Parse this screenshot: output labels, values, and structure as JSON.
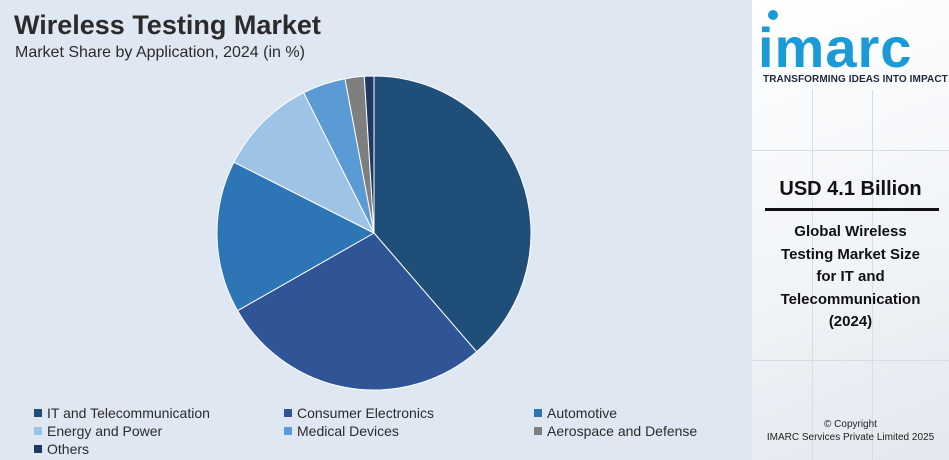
{
  "chart_data": {
    "type": "pie",
    "title": "Wireless Testing Market",
    "subtitle": "Market Share by Application, 2024 (in %)",
    "categories": [
      "IT and Telecommunication",
      "Consumer Electronics",
      "Automotive",
      "Energy and Power",
      "Medical Devices",
      "Aerospace and Defense",
      "Others"
    ],
    "values": [
      39.2,
      28.5,
      15.9,
      10.3,
      4.5,
      2.0,
      1.0
    ],
    "colors": [
      "#1f4e79",
      "#2f5597",
      "#2e75b6",
      "#9dc3e6",
      "#5b9bd5",
      "#7f7f7f",
      "#203864"
    ],
    "legend_position": "bottom"
  },
  "brand": {
    "logo_text": "imarc",
    "tagline": "TRANSFORMING IDEAS INTO IMPACT"
  },
  "stat": {
    "value": "USD 4.1 Billion",
    "description": "Global Wireless Testing Market Size for IT and Telecommunication (2024)"
  },
  "copyright": {
    "line1": "© Copyright",
    "line2": "IMARC Services Private Limited 2025"
  }
}
